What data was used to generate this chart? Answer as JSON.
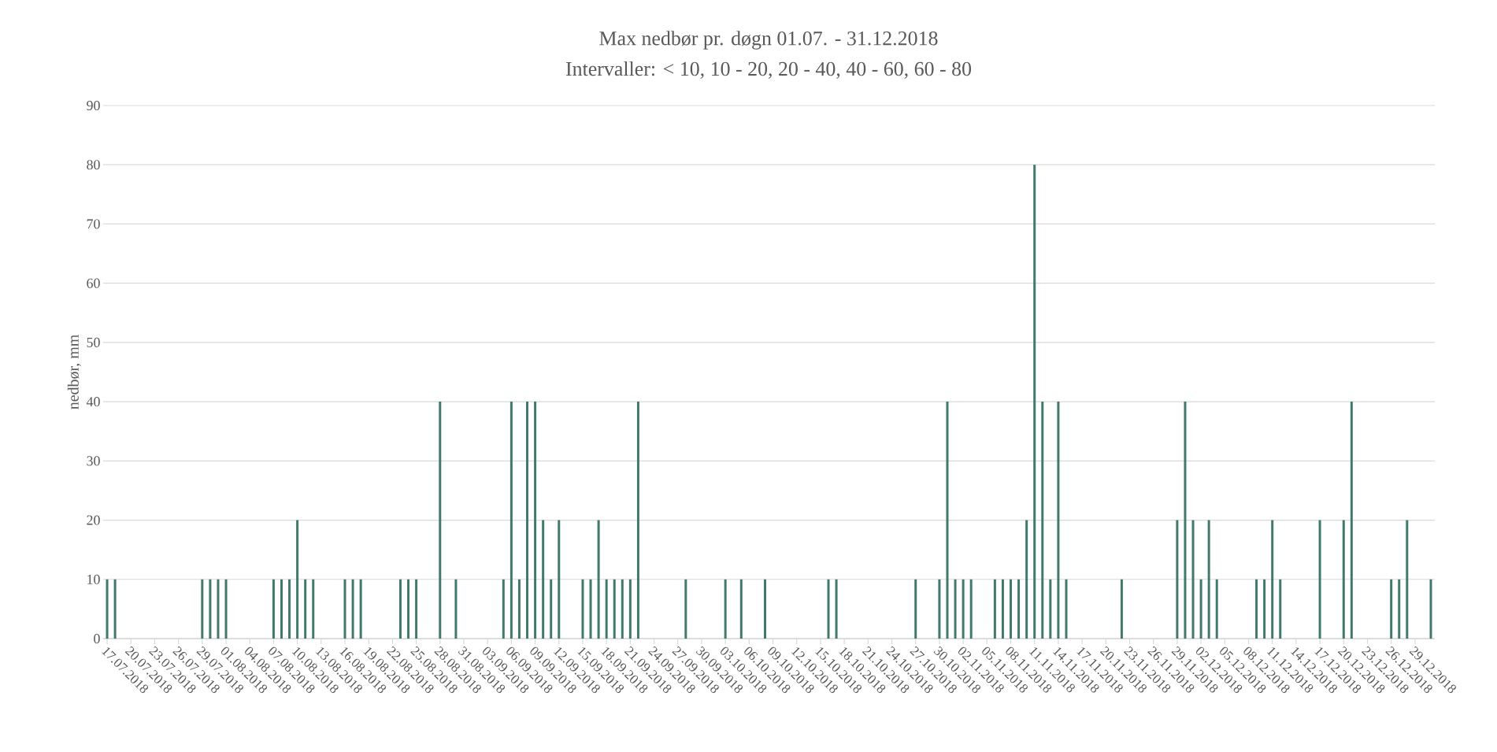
{
  "chart_data": {
    "type": "bar",
    "title": "Max nedbør pr. døgn 01.07. - 31.12.2018",
    "subtitle": "Intervaller: < 10, 10 - 20, 20 - 40, 40 - 60, 60 - 80",
    "ylabel": "nedbør, mm",
    "color": "#417a6c",
    "ylim": [
      0,
      90
    ],
    "yticks": [
      0,
      10,
      20,
      30,
      40,
      50,
      60,
      70,
      80,
      90
    ],
    "grid": "y",
    "categories": [
      "17.07.2018",
      null,
      null,
      "20.07.2018",
      null,
      null,
      "23.07.2018",
      null,
      null,
      "26.07.2018",
      null,
      null,
      "29.07.2018",
      null,
      null,
      "01.08.2018",
      null,
      null,
      "04.08.2018",
      null,
      null,
      "07.08.2018",
      null,
      null,
      "10.08.2018",
      null,
      null,
      "13.08.2018",
      null,
      null,
      "16.08.2018",
      null,
      null,
      "19.08.2018",
      null,
      null,
      "22.08.2018",
      null,
      null,
      "25.08.2018",
      null,
      null,
      "28.08.2018",
      null,
      null,
      "31.08.2018",
      null,
      null,
      "03.09.2018",
      null,
      null,
      "06.09.2018",
      null,
      null,
      "09.09.2018",
      null,
      null,
      "12.09.2018",
      null,
      null,
      "15.09.2018",
      null,
      null,
      "18.09.2018",
      null,
      null,
      "21.09.2018",
      null,
      null,
      "24.09.2018",
      null,
      null,
      "27.09.2018",
      null,
      null,
      "30.09.2018",
      null,
      null,
      "03.10.2018",
      null,
      null,
      "06.10.2018",
      null,
      null,
      "09.10.2018",
      null,
      null,
      "12.10.2018",
      null,
      null,
      "15.10.2018",
      null,
      null,
      "18.10.2018",
      null,
      null,
      "21.10.2018",
      null,
      null,
      "24.10.2018",
      null,
      null,
      "27.10.2018",
      null,
      null,
      "30.10.2018",
      null,
      null,
      "02.11.2018",
      null,
      null,
      "05.11.2018",
      null,
      null,
      "08.11.2018",
      null,
      null,
      "11.11.2018",
      null,
      null,
      "14.11.2018",
      null,
      null,
      "17.11.2018",
      null,
      null,
      "20.11.2018",
      null,
      null,
      "23.11.2018",
      null,
      null,
      "26.11.2018",
      null,
      null,
      "29.11.2018",
      null,
      null,
      "02.12.2018",
      null,
      null,
      "05.12.2018",
      null,
      null,
      "08.12.2018",
      null,
      null,
      "11.12.2018",
      null,
      null,
      "14.12.2018",
      null,
      null,
      "17.12.2018",
      null,
      null,
      "20.12.2018",
      null,
      null,
      "23.12.2018",
      null,
      null,
      "26.12.2018",
      null,
      null,
      "29.12.2018",
      null,
      null
    ],
    "values": [
      10,
      10,
      0,
      0,
      0,
      0,
      0,
      0,
      0,
      0,
      0,
      0,
      10,
      10,
      10,
      10,
      0,
      0,
      0,
      0,
      0,
      10,
      10,
      10,
      20,
      10,
      10,
      0,
      0,
      0,
      10,
      10,
      10,
      0,
      0,
      0,
      0,
      10,
      10,
      10,
      0,
      0,
      40,
      0,
      10,
      0,
      0,
      0,
      0,
      0,
      10,
      40,
      10,
      40,
      40,
      20,
      10,
      20,
      0,
      0,
      10,
      10,
      20,
      10,
      10,
      10,
      10,
      40,
      0,
      0,
      0,
      0,
      0,
      10,
      0,
      0,
      0,
      0,
      10,
      0,
      10,
      0,
      0,
      10,
      0,
      0,
      0,
      0,
      0,
      0,
      0,
      10,
      10,
      0,
      0,
      0,
      0,
      0,
      0,
      0,
      0,
      0,
      10,
      0,
      0,
      10,
      40,
      10,
      10,
      10,
      0,
      0,
      10,
      10,
      10,
      10,
      20,
      80,
      40,
      10,
      40,
      10,
      0,
      0,
      0,
      0,
      0,
      0,
      10,
      0,
      0,
      0,
      0,
      0,
      0,
      20,
      40,
      20,
      10,
      20,
      10,
      0,
      0,
      0,
      0,
      10,
      10,
      20,
      10,
      0,
      0,
      0,
      0,
      20,
      0,
      0,
      20,
      40,
      0,
      0,
      0,
      0,
      10,
      10,
      20,
      0,
      0,
      10
    ]
  }
}
